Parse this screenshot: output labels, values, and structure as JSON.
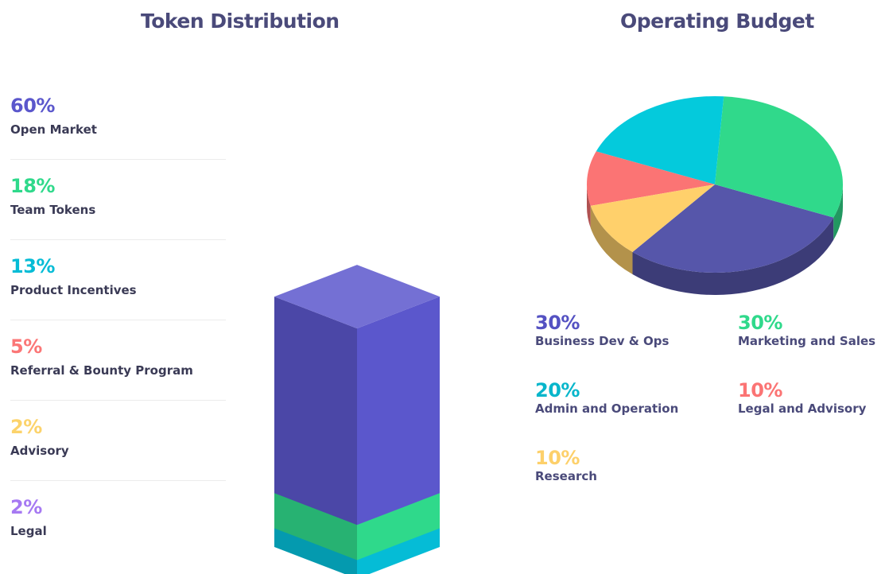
{
  "titles": {
    "left": "Token Distribution",
    "right": "Operating Budget"
  },
  "chart_data": [
    {
      "type": "bar",
      "title": "Token Distribution",
      "categories": [
        "Open Market",
        "Team Tokens",
        "Product Incentives",
        "Referral & Bounty Program",
        "Advisory",
        "Legal"
      ],
      "values": [
        60,
        18,
        13,
        5,
        2,
        2
      ],
      "value_labels": [
        "60%",
        "18%",
        "13%",
        "5%",
        "2%",
        "2%"
      ],
      "unit": "%",
      "colors": [
        "#5b57cc",
        "#2fd98b",
        "#05bcd6",
        "#fb7676",
        "#fcd36b",
        "#a679f2"
      ]
    },
    {
      "type": "pie",
      "title": "Operating Budget",
      "categories": [
        "Business Dev & Ops",
        "Marketing and Sales",
        "Admin and Operation",
        "Legal and Advisory",
        "Research"
      ],
      "values": [
        30,
        30,
        20,
        10,
        10
      ],
      "value_labels": [
        "30%",
        "30%",
        "20%",
        "10%",
        "10%"
      ],
      "unit": "%",
      "colors": [
        "#5656aa",
        "#30d98b",
        "#04cadc",
        "#fb7474",
        "#ffd06b"
      ],
      "pct_colors": [
        "#5451c2",
        "#2fd98b",
        "#07b6cb",
        "#fb7474",
        "#fdd06a"
      ]
    }
  ]
}
